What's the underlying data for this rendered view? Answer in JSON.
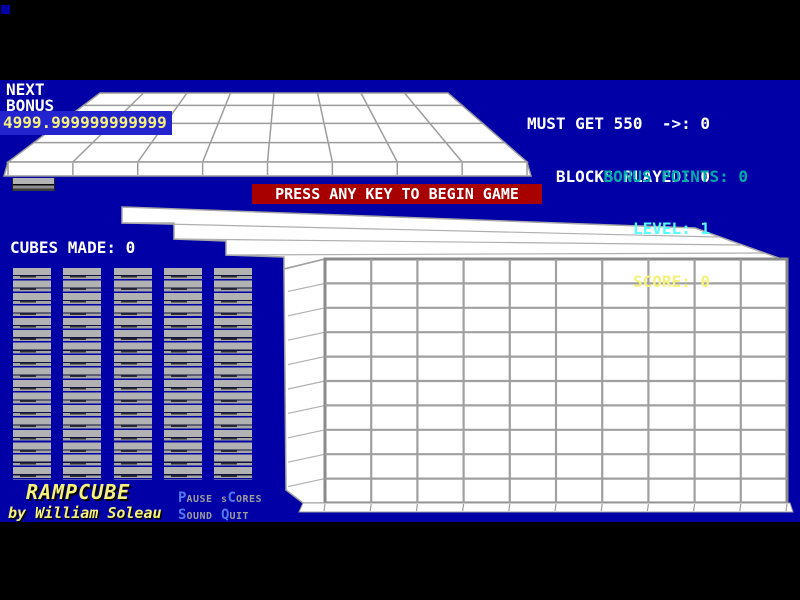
{
  "palette": {
    "background_black": "#000000",
    "field_blue": "#0000A6",
    "highlight_blue": "#2424CE",
    "banner_red": "#A80000",
    "text_white": "#FFFFFF",
    "text_yellow": "#F5F17C",
    "text_cyan_bright": "#55FFFF",
    "text_cyan_dark": "#00AAAA",
    "menu_hotkey_blue": "#4E79F0",
    "menu_gray": "#9C9C9C",
    "block_gray": "#B2B2B2",
    "grid_line_gray": "#A0A0A0",
    "surface_white": "#FFFFFF"
  },
  "hud_left": {
    "next_label": "NEXT",
    "bonus_label": "BONUS",
    "bonus_value": "4999.999999999999",
    "cubes_made": "CUBES MADE: 0"
  },
  "hud_right": {
    "must_get": "MUST GET 550  ->: 0",
    "blocks_played": "BLOCKS PLAYED: 0",
    "level": "LEVEL: 1",
    "score": "SCORE: 0",
    "bonus_points": "BONUS POINTS: 0"
  },
  "banner": {
    "message": "PRESS ANY KEY TO BEGIN GAME"
  },
  "branding": {
    "title": "RAMPCUBE",
    "byline": "by William Soleau"
  },
  "menu": {
    "items": [
      {
        "pre": "",
        "hot": "P",
        "rest": "AUSE"
      },
      {
        "pre": "s",
        "hot": "C",
        "rest": "ORES"
      },
      {
        "pre": "",
        "hot": "S",
        "rest": "OUND"
      },
      {
        "pre": "",
        "hot": "Q",
        "rest": "UIT"
      }
    ]
  },
  "game_state": {
    "cube_stacks": 5,
    "blocks_per_stack": 17,
    "grid_columns": 10,
    "grid_rows": 10
  }
}
